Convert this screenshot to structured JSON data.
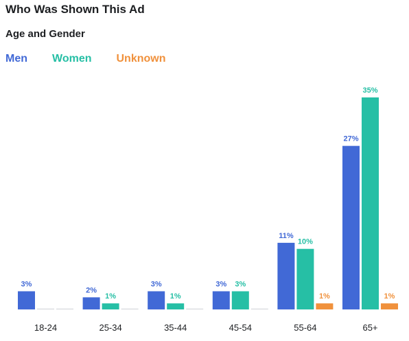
{
  "chart_data": {
    "type": "bar",
    "title": "Who Was Shown This Ad",
    "subtitle": "Age and Gender",
    "legend_position": "top-left",
    "categories": [
      "18-24",
      "25-34",
      "35-44",
      "45-54",
      "55-64",
      "65+"
    ],
    "series": [
      {
        "name": "Men",
        "color": "#4169d6",
        "values": [
          3,
          2,
          3,
          3,
          11,
          27
        ],
        "labels": [
          "3%",
          "2%",
          "3%",
          "3%",
          "11%",
          "27%"
        ]
      },
      {
        "name": "Women",
        "color": "#26bfa5",
        "values": [
          0,
          1,
          1,
          3,
          10,
          35
        ],
        "labels": [
          "",
          "1%",
          "1%",
          "3%",
          "10%",
          "35%"
        ]
      },
      {
        "name": "Unknown",
        "color": "#f0913c",
        "values": [
          0,
          0,
          0,
          0,
          1,
          1
        ],
        "labels": [
          "",
          "",
          "",
          "",
          "1%",
          "1%"
        ]
      }
    ],
    "ylim": [
      0,
      35
    ],
    "grid": false
  }
}
